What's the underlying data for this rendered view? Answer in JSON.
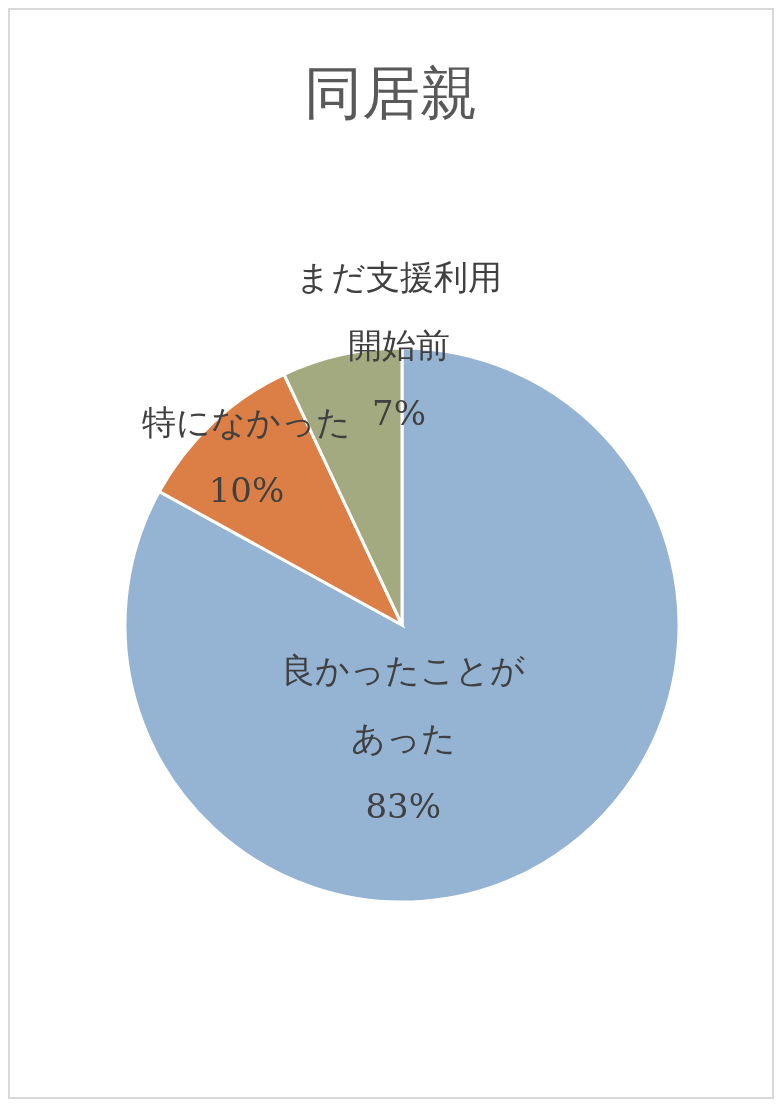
{
  "chart_data": {
    "type": "pie",
    "title": "同居親",
    "categories": [
      "良かったことがあった",
      "特になかった",
      "まだ支援利用開始前"
    ],
    "values": [
      83,
      10,
      7
    ],
    "colors": [
      "#95b3d3",
      "#dc7f47",
      "#a3aa80"
    ],
    "value_labels": [
      "83%",
      "10%",
      "7%"
    ]
  }
}
